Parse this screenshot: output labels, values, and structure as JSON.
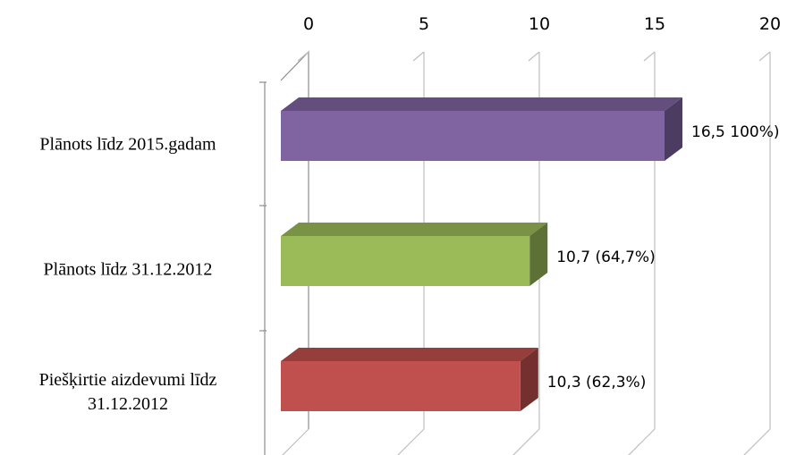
{
  "chart_data": {
    "type": "bar",
    "orientation": "horizontal",
    "three_d": true,
    "categories": [
      "Plānots līdz 2015.gadam",
      "Plānots līdz 31.12.2012",
      "Piešķirtie aizdevumi līdz 31.12.2012"
    ],
    "category_lines": [
      [
        "Plānots līdz 2015.gadam"
      ],
      [
        "Plānots līdz 31.12.2012"
      ],
      [
        "Piešķirtie aizdevumi līdz",
        "31.12.2012"
      ]
    ],
    "values": [
      16.5,
      10.7,
      10.3
    ],
    "data_labels": [
      "16,5 100%)",
      "10,7 (64,7%)",
      "10,3 (62,3%)"
    ],
    "bar_colors": [
      "#8064A2",
      "#9BBB59",
      "#C0504D"
    ],
    "x_ticks": [
      "0",
      "5",
      "10",
      "15",
      "20"
    ],
    "xlim": [
      0,
      20
    ],
    "x_axis_position": "top",
    "grid": true
  }
}
